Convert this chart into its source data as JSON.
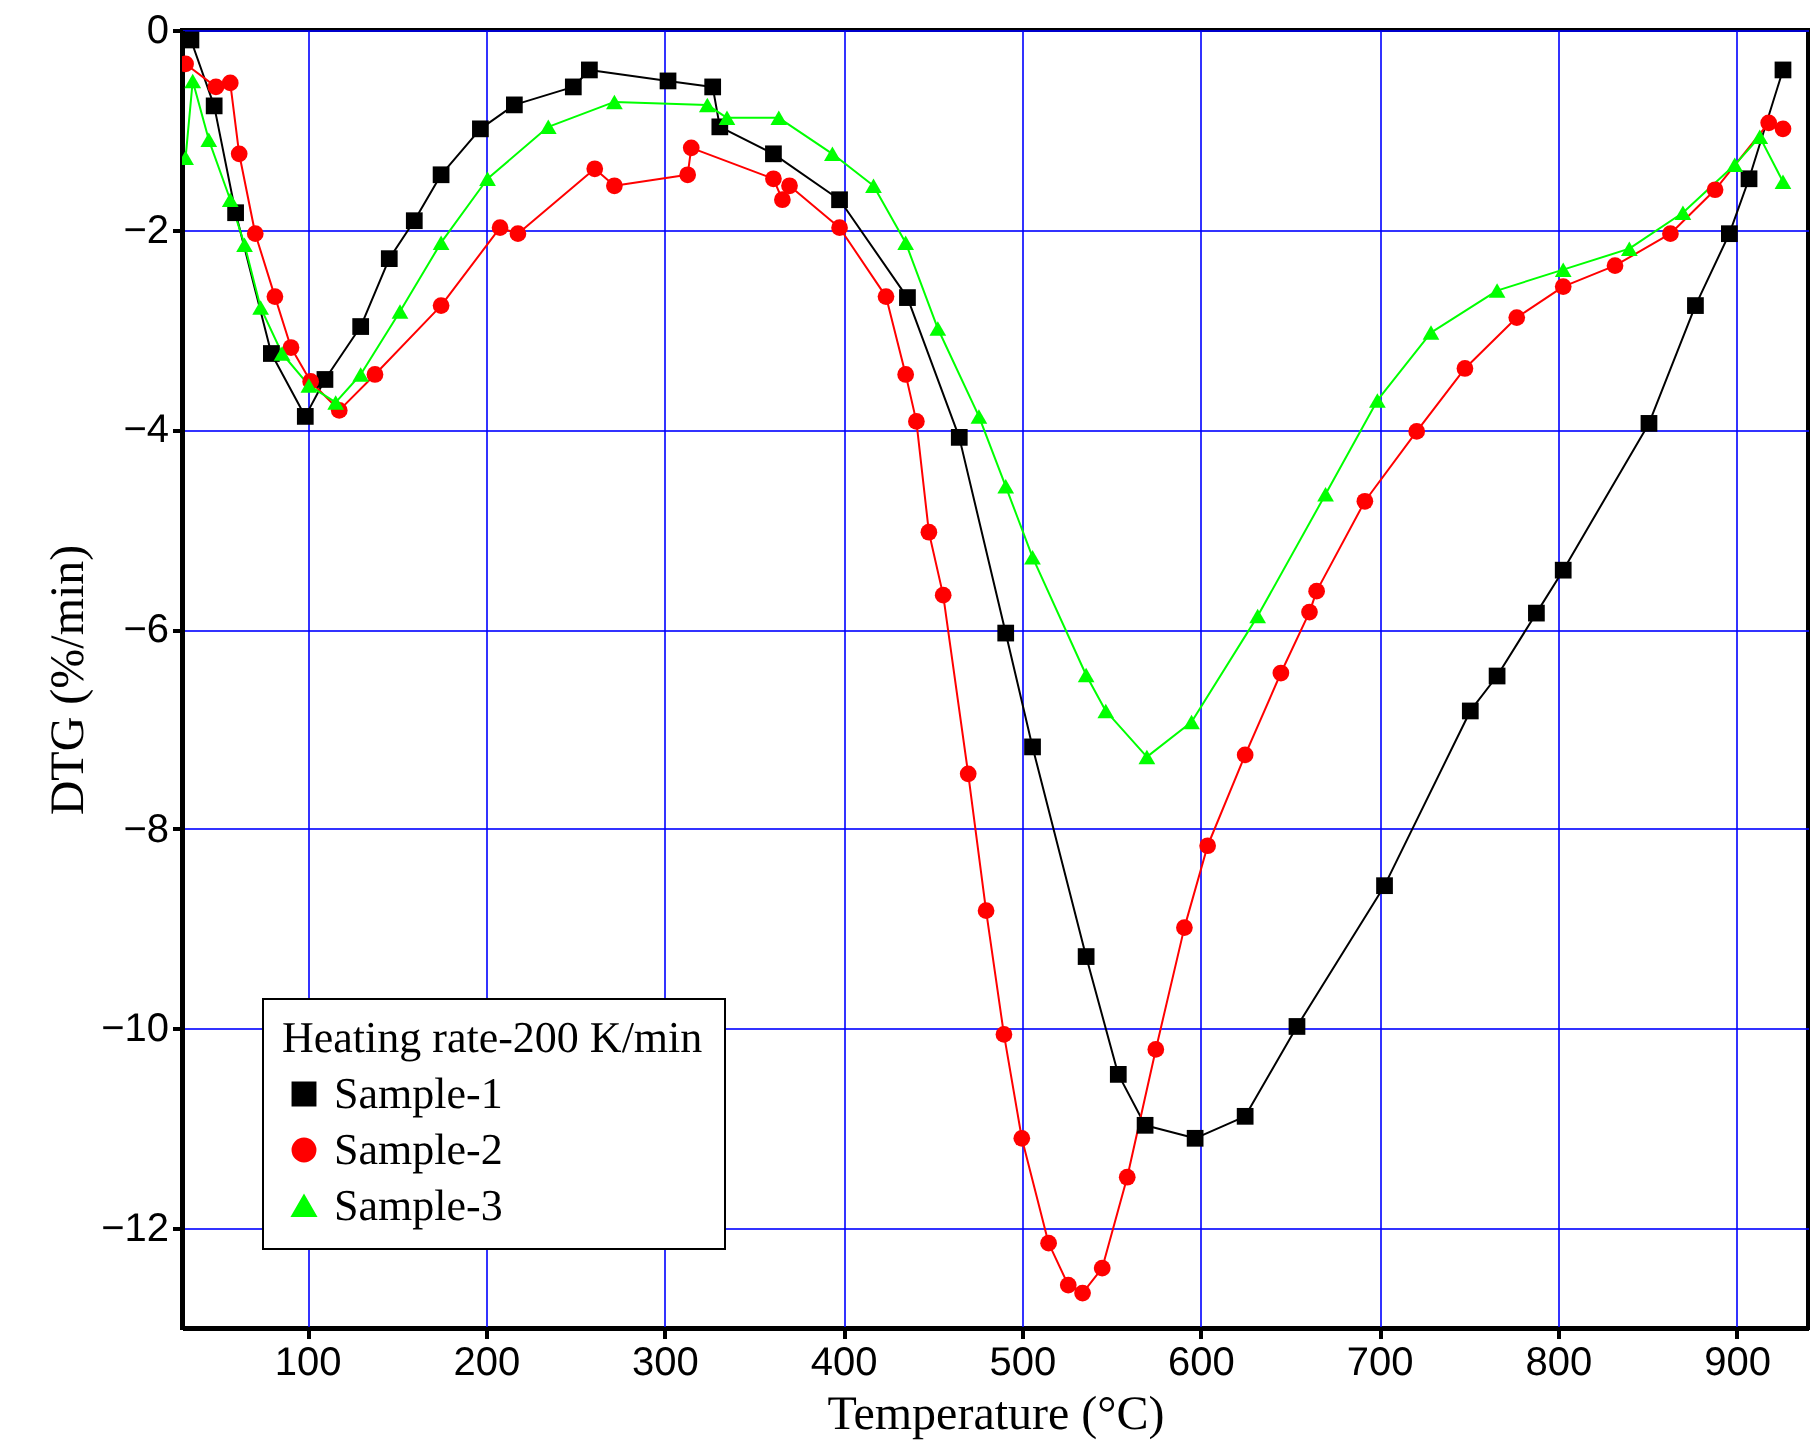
{
  "chart_data": {
    "type": "line",
    "xlabel": "Temperature (°C)",
    "ylabel": "DTG (%/min)",
    "legend_title": "Heating rate-200 K/min",
    "xlim": [
      30,
      940
    ],
    "ylim": [
      -13,
      0
    ],
    "xticks": [
      100,
      200,
      300,
      400,
      500,
      600,
      700,
      800,
      900
    ],
    "yticks": [
      0,
      -2,
      -4,
      -6,
      -8,
      -10,
      -12
    ],
    "grid": true,
    "legend": "bottom left",
    "line_style": "solid",
    "series": [
      {
        "name": "Sample-1",
        "color": "#000000",
        "marker": "square",
        "x": [
          35,
          48,
          60,
          80,
          99,
          110,
          130,
          146,
          160,
          175,
          197,
          216,
          249,
          258,
          302,
          327,
          331,
          361,
          398,
          436,
          465,
          491,
          506,
          536,
          554,
          569,
          597,
          625,
          654,
          703,
          751,
          766,
          788,
          803,
          851,
          877,
          896,
          907,
          926
        ],
        "values": [
          -0.1,
          -0.76,
          -1.83,
          -3.24,
          -3.87,
          -3.5,
          -2.97,
          -2.29,
          -1.91,
          -1.45,
          -0.99,
          -0.75,
          -0.57,
          -0.4,
          -0.51,
          -0.57,
          -0.97,
          -1.24,
          -1.7,
          -2.68,
          -4.08,
          -6.04,
          -7.18,
          -9.28,
          -10.46,
          -10.97,
          -11.1,
          -10.88,
          -9.98,
          -8.57,
          -6.82,
          -6.47,
          -5.84,
          -5.41,
          -3.94,
          -2.76,
          -2.04,
          -1.49,
          -0.4
        ]
      },
      {
        "name": "Sample-2",
        "color": "#ff0000",
        "marker": "circle",
        "x": [
          32,
          49,
          57,
          62,
          71,
          82,
          91,
          102,
          118,
          138,
          175,
          208,
          218,
          261,
          272,
          313,
          315,
          361,
          366,
          370,
          398,
          424,
          435,
          441,
          448,
          456,
          470,
          480,
          490,
          500,
          515,
          526,
          534,
          545,
          559,
          575,
          591,
          604,
          625,
          645,
          661,
          665,
          692,
          721,
          748,
          777,
          803,
          832,
          863,
          888,
          918,
          926
        ],
        "values": [
          -0.34,
          -0.57,
          -0.53,
          -1.24,
          -2.04,
          -2.67,
          -3.18,
          -3.52,
          -3.81,
          -3.45,
          -2.76,
          -1.98,
          -2.04,
          -1.39,
          -1.56,
          -1.45,
          -1.18,
          -1.49,
          -1.7,
          -1.56,
          -1.98,
          -2.67,
          -3.45,
          -3.92,
          -5.03,
          -5.66,
          -7.45,
          -8.82,
          -10.06,
          -11.1,
          -12.15,
          -12.57,
          -12.65,
          -12.4,
          -11.49,
          -10.21,
          -8.99,
          -8.17,
          -7.26,
          -6.44,
          -5.83,
          -5.62,
          -4.72,
          -4.02,
          -3.39,
          -2.88,
          -2.57,
          -2.36,
          -2.04,
          -1.6,
          -0.93,
          -0.99
        ]
      },
      {
        "name": "Sample-3",
        "color": "#00ff00",
        "marker": "triangle",
        "x": [
          32,
          36,
          45,
          57,
          65,
          74,
          86,
          101,
          116,
          130,
          152,
          175,
          201,
          235,
          272,
          324,
          335,
          364,
          394,
          417,
          435,
          453,
          476,
          491,
          506,
          536,
          547,
          570,
          595,
          632,
          670,
          699,
          729,
          766,
          803,
          840,
          870,
          899,
          913,
          926
        ],
        "values": [
          -1.28,
          -0.51,
          -1.1,
          -1.7,
          -2.15,
          -2.78,
          -3.24,
          -3.56,
          -3.73,
          -3.45,
          -2.82,
          -2.13,
          -1.49,
          -0.97,
          -0.72,
          -0.75,
          -0.88,
          -0.88,
          -1.24,
          -1.56,
          -2.13,
          -2.99,
          -3.87,
          -4.57,
          -5.28,
          -6.46,
          -6.82,
          -7.28,
          -6.93,
          -5.87,
          -4.65,
          -3.71,
          -3.03,
          -2.61,
          -2.4,
          -2.19,
          -1.83,
          -1.35,
          -1.07,
          -1.52
        ]
      }
    ]
  }
}
